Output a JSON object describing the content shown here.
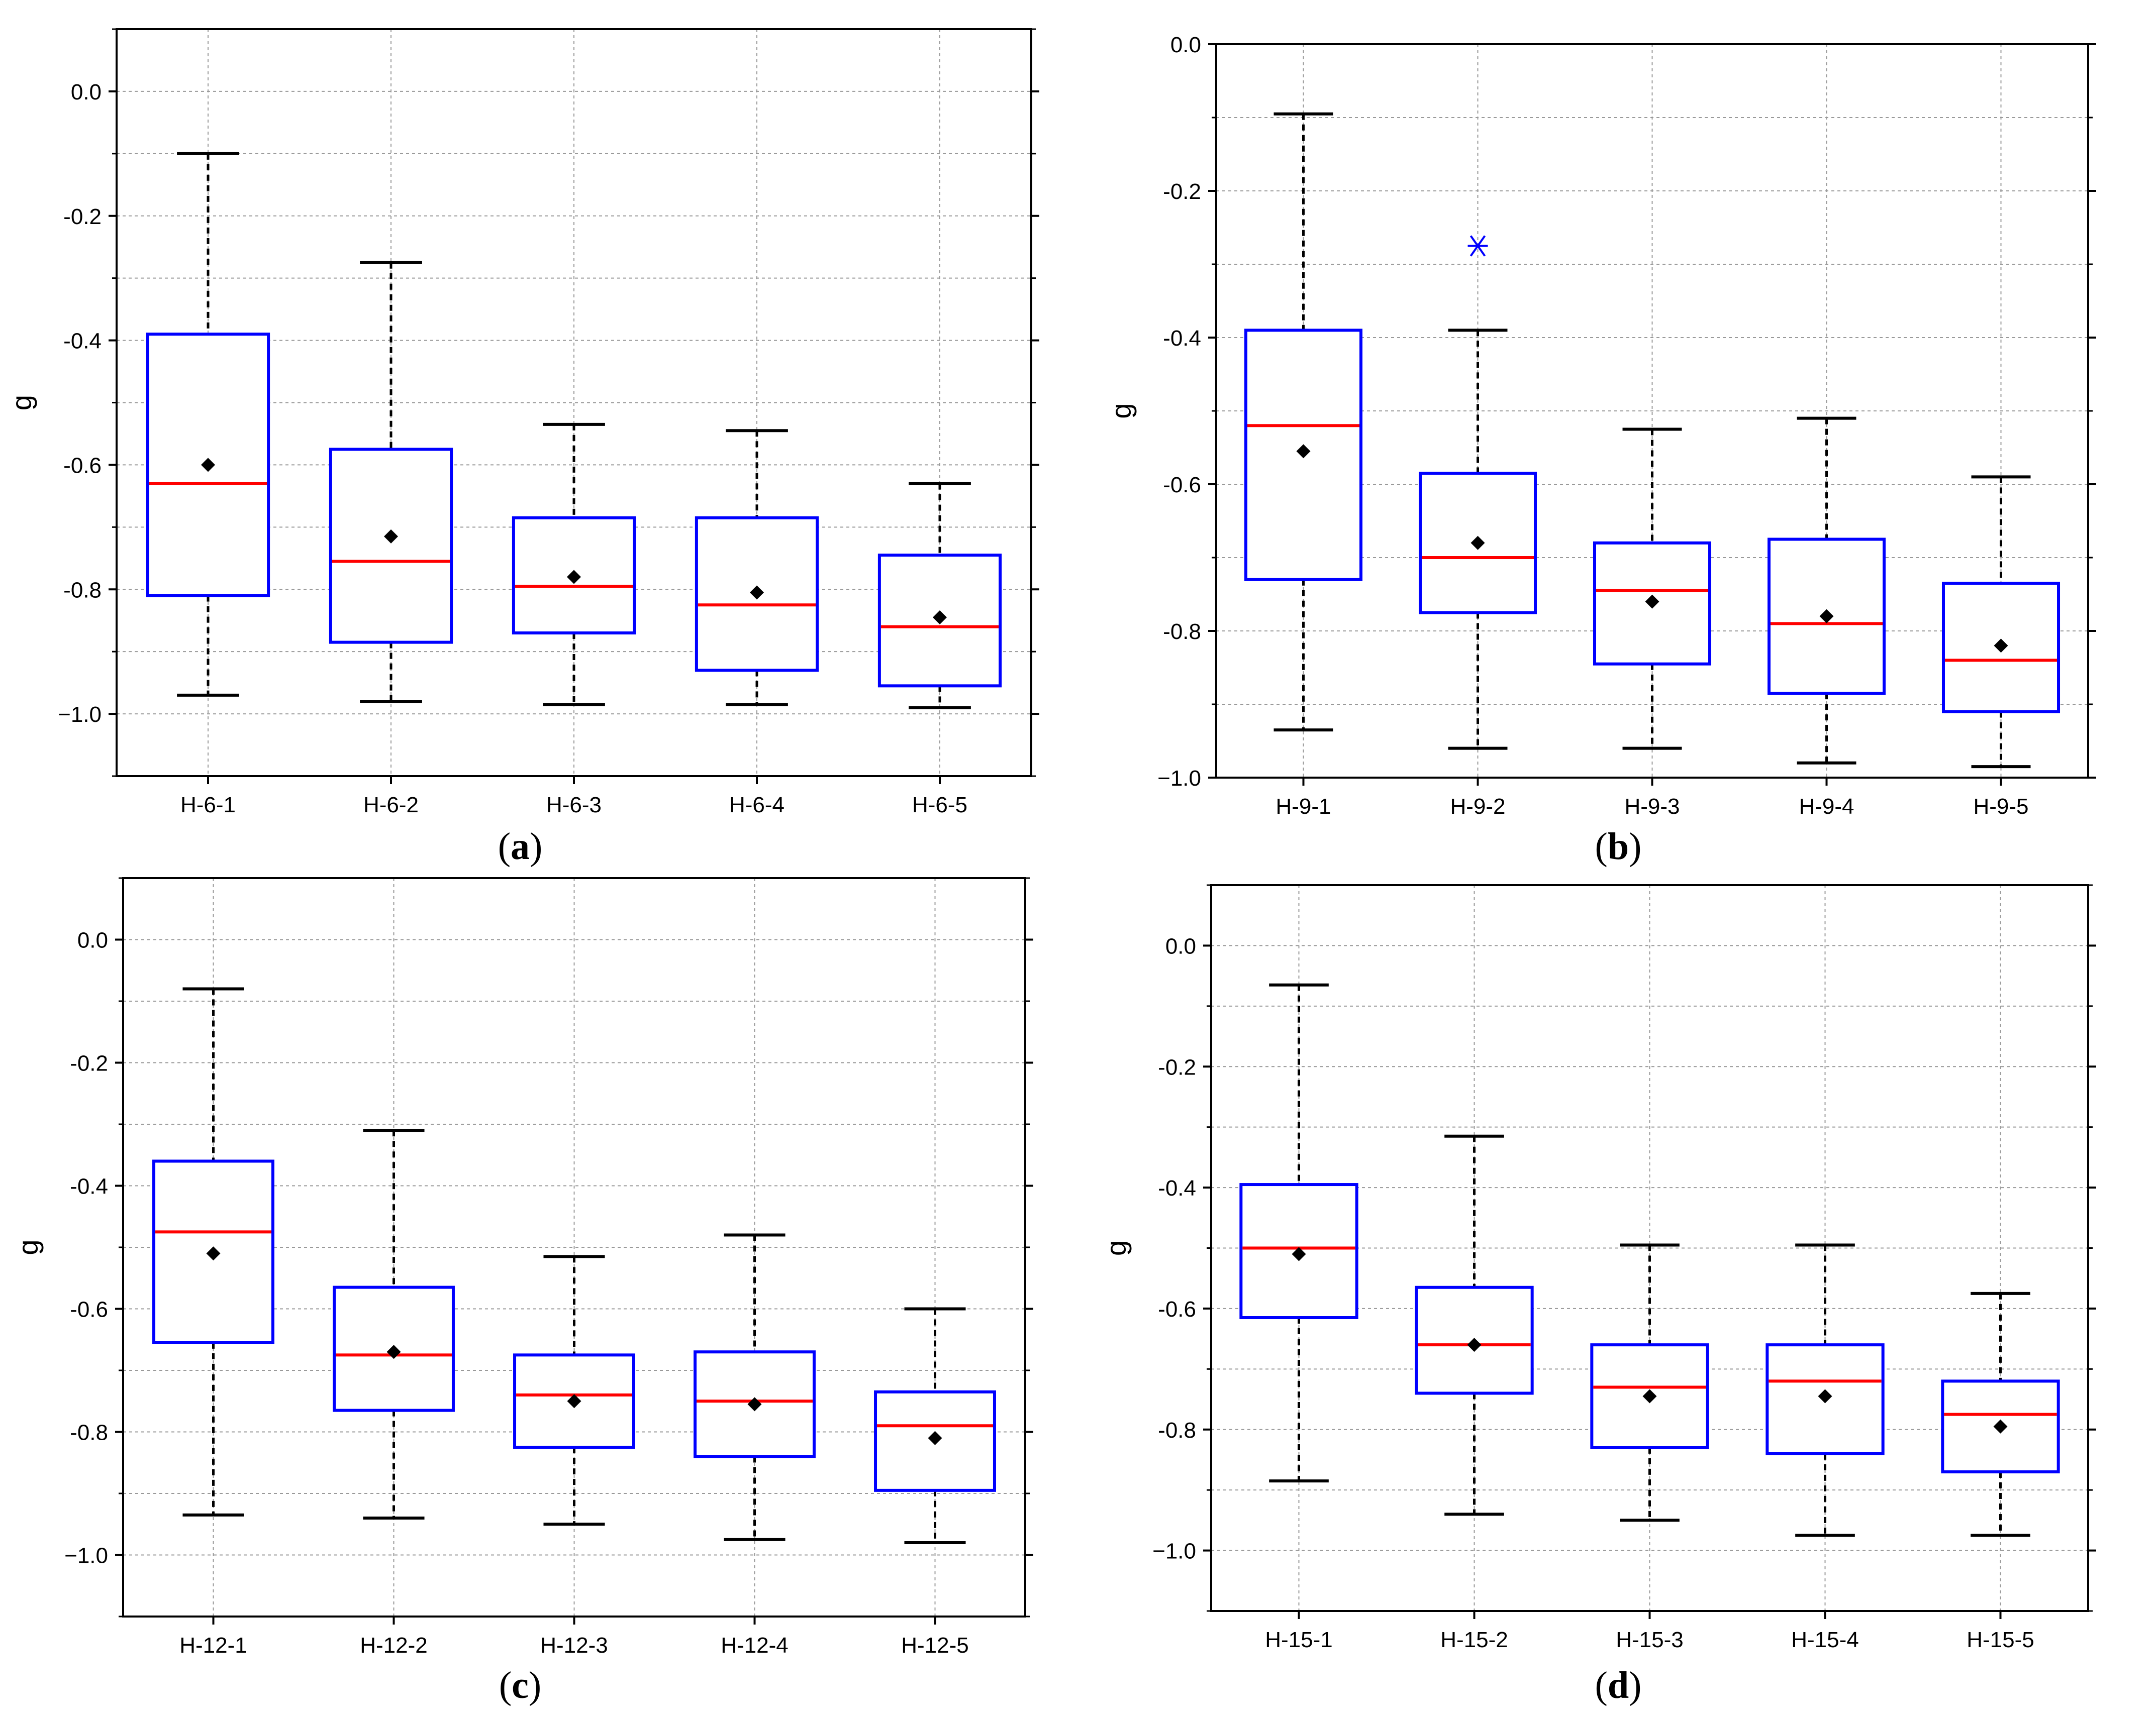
{
  "figure_labels": [
    "a",
    "b",
    "c",
    "d"
  ],
  "colors": {
    "box": "#0000ff",
    "median": "#ff0000",
    "whisker": "#000000",
    "mean": "#000000",
    "outlier": "#0000ff",
    "grid": "#999999"
  },
  "chart_data": [
    {
      "panel": "a",
      "type": "box",
      "ylabel": "g",
      "xlabel": "",
      "ylim": [
        -1.1,
        0.1
      ],
      "yticks": [
        0.0,
        -0.2,
        -0.4,
        -0.6,
        -0.8,
        -1.0
      ],
      "ytick_labels": [
        "0.0",
        "-0.2",
        "-0.4",
        "-0.6",
        "-0.8",
        "−1.0"
      ],
      "grid": true,
      "categories": [
        "H-6-1",
        "H-6-2",
        "H-6-3",
        "H-6-4",
        "H-6-5"
      ],
      "boxes": [
        {
          "whisker_low": -0.97,
          "q1": -0.81,
          "median": -0.63,
          "q3": -0.39,
          "whisker_high": -0.1,
          "mean": -0.6,
          "outliers": []
        },
        {
          "whisker_low": -0.98,
          "q1": -0.885,
          "median": -0.755,
          "q3": -0.575,
          "whisker_high": -0.275,
          "mean": -0.715,
          "outliers": []
        },
        {
          "whisker_low": -0.985,
          "q1": -0.87,
          "median": -0.795,
          "q3": -0.685,
          "whisker_high": -0.535,
          "mean": -0.78,
          "outliers": []
        },
        {
          "whisker_low": -0.985,
          "q1": -0.93,
          "median": -0.825,
          "q3": -0.685,
          "whisker_high": -0.545,
          "mean": -0.805,
          "outliers": []
        },
        {
          "whisker_low": -0.99,
          "q1": -0.955,
          "median": -0.86,
          "q3": -0.745,
          "whisker_high": -0.63,
          "mean": -0.845,
          "outliers": []
        }
      ]
    },
    {
      "panel": "b",
      "type": "box",
      "ylabel": "g",
      "xlabel": "",
      "ylim": [
        -1.0,
        0.0
      ],
      "yticks": [
        0.0,
        -0.2,
        -0.4,
        -0.6,
        -0.8,
        -1.0
      ],
      "ytick_labels": [
        "0.0",
        "-0.2",
        "-0.4",
        "-0.6",
        "-0.8",
        "−1.0"
      ],
      "grid": true,
      "categories": [
        "H-9-1",
        "H-9-2",
        "H-9-3",
        "H-9-4",
        "H-9-5"
      ],
      "boxes": [
        {
          "whisker_low": -0.935,
          "q1": -0.73,
          "median": -0.52,
          "q3": -0.39,
          "whisker_high": -0.095,
          "mean": -0.555,
          "outliers": []
        },
        {
          "whisker_low": -0.96,
          "q1": -0.775,
          "median": -0.7,
          "q3": -0.585,
          "whisker_high": -0.39,
          "mean": -0.68,
          "outliers": [
            -0.275
          ]
        },
        {
          "whisker_low": -0.96,
          "q1": -0.845,
          "median": -0.745,
          "q3": -0.68,
          "whisker_high": -0.525,
          "mean": -0.76,
          "outliers": []
        },
        {
          "whisker_low": -0.98,
          "q1": -0.885,
          "median": -0.79,
          "q3": -0.675,
          "whisker_high": -0.51,
          "mean": -0.78,
          "outliers": []
        },
        {
          "whisker_low": -0.985,
          "q1": -0.91,
          "median": -0.84,
          "q3": -0.735,
          "whisker_high": -0.59,
          "mean": -0.82,
          "outliers": []
        }
      ]
    },
    {
      "panel": "c",
      "type": "box",
      "ylabel": "g",
      "xlabel": "",
      "ylim": [
        -1.1,
        0.1
      ],
      "yticks": [
        0.0,
        -0.2,
        -0.4,
        -0.6,
        -0.8,
        -1.0
      ],
      "ytick_labels": [
        "0.0",
        "-0.2",
        "-0.4",
        "-0.6",
        "-0.8",
        "−1.0"
      ],
      "grid": true,
      "categories": [
        "H-12-1",
        "H-12-2",
        "H-12-3",
        "H-12-4",
        "H-12-5"
      ],
      "boxes": [
        {
          "whisker_low": -0.935,
          "q1": -0.655,
          "median": -0.475,
          "q3": -0.36,
          "whisker_high": -0.08,
          "mean": -0.51,
          "outliers": []
        },
        {
          "whisker_low": -0.94,
          "q1": -0.765,
          "median": -0.675,
          "q3": -0.565,
          "whisker_high": -0.31,
          "mean": -0.67,
          "outliers": []
        },
        {
          "whisker_low": -0.95,
          "q1": -0.825,
          "median": -0.74,
          "q3": -0.675,
          "whisker_high": -0.515,
          "mean": -0.75,
          "outliers": []
        },
        {
          "whisker_low": -0.975,
          "q1": -0.84,
          "median": -0.75,
          "q3": -0.67,
          "whisker_high": -0.48,
          "mean": -0.755,
          "outliers": []
        },
        {
          "whisker_low": -0.98,
          "q1": -0.895,
          "median": -0.79,
          "q3": -0.735,
          "whisker_high": -0.6,
          "mean": -0.81,
          "outliers": []
        }
      ]
    },
    {
      "panel": "d",
      "type": "box",
      "ylabel": "g",
      "xlabel": "",
      "ylim": [
        -1.1,
        0.1
      ],
      "yticks": [
        0.0,
        -0.2,
        -0.4,
        -0.6,
        -0.8,
        -1.0
      ],
      "ytick_labels": [
        "0.0",
        "-0.2",
        "-0.4",
        "-0.6",
        "-0.8",
        "−1.0"
      ],
      "grid": true,
      "categories": [
        "H-15-1",
        "H-15-2",
        "H-15-3",
        "H-15-4",
        "H-15-5"
      ],
      "boxes": [
        {
          "whisker_low": -0.885,
          "q1": -0.615,
          "median": -0.5,
          "q3": -0.395,
          "whisker_high": -0.065,
          "mean": -0.51,
          "outliers": []
        },
        {
          "whisker_low": -0.94,
          "q1": -0.74,
          "median": -0.66,
          "q3": -0.565,
          "whisker_high": -0.315,
          "mean": -0.66,
          "outliers": []
        },
        {
          "whisker_low": -0.95,
          "q1": -0.83,
          "median": -0.73,
          "q3": -0.66,
          "whisker_high": -0.495,
          "mean": -0.745,
          "outliers": []
        },
        {
          "whisker_low": -0.975,
          "q1": -0.84,
          "median": -0.72,
          "q3": -0.66,
          "whisker_high": -0.495,
          "mean": -0.745,
          "outliers": []
        },
        {
          "whisker_low": -0.975,
          "q1": -0.87,
          "median": -0.775,
          "q3": -0.72,
          "whisker_high": -0.575,
          "mean": -0.795,
          "outliers": []
        }
      ]
    }
  ]
}
